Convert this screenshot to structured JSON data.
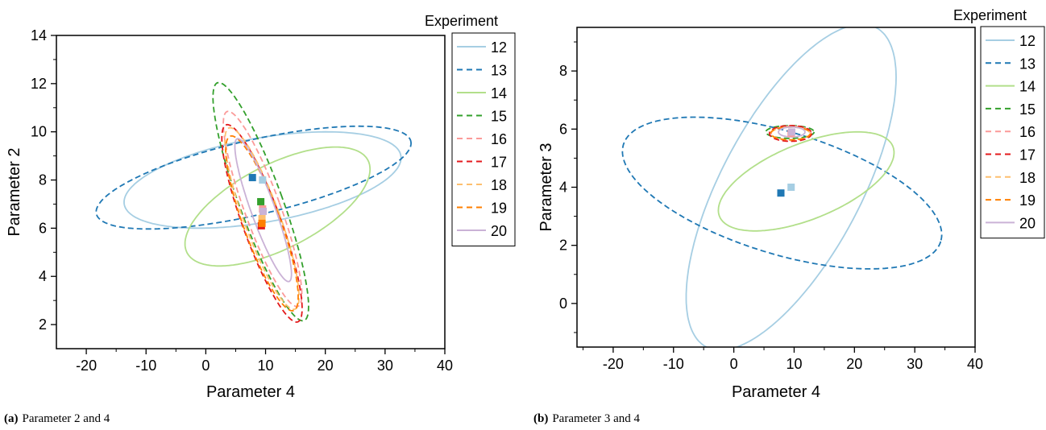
{
  "legend_colors": {
    "12": "#a6cee3",
    "13": "#1f78b4",
    "14": "#b2df8a",
    "15": "#33a02c",
    "16": "#fb9a99",
    "17": "#e31a1c",
    "18": "#fdbf6f",
    "19": "#ff7f00",
    "20": "#cab2d6"
  },
  "chart_data": [
    {
      "type": "scatter",
      "caption_label": "(a)",
      "caption_text": "Parameter 2 and 4",
      "xlabel": "Parameter 4",
      "ylabel": "Parameter 2",
      "xlim": [
        -25,
        40
      ],
      "ylim": [
        1,
        14
      ],
      "xticks": [
        -20,
        -10,
        0,
        10,
        20,
        30,
        40
      ],
      "yticks": [
        2,
        4,
        6,
        8,
        10,
        12,
        14
      ],
      "legend_title": "Experiment",
      "legend_placement": "right",
      "series": [
        {
          "name": "12",
          "style": "solid",
          "ellipse": {
            "center": [
              9.5,
              8.0
            ],
            "rx": 23.5,
            "ry": 1.75,
            "angle_deg": -10
          },
          "marker": [
            9.5,
            8.0
          ]
        },
        {
          "name": "13",
          "style": "dashed",
          "ellipse": {
            "center": [
              8.0,
              8.1
            ],
            "rx": 27.0,
            "ry": 1.55,
            "angle_deg": -13
          },
          "marker": [
            7.8,
            8.1
          ]
        },
        {
          "name": "14",
          "style": "solid",
          "ellipse": {
            "center": [
              12.0,
              6.9
            ],
            "rx": 17.0,
            "ry": 1.75,
            "angle_deg": -27
          },
          "marker": null
        },
        {
          "name": "15",
          "style": "dashed",
          "ellipse": {
            "center": [
              9.2,
              7.1
            ],
            "rx": 3.6,
            "ry": 5.25,
            "angle_deg": -20
          },
          "marker": [
            9.2,
            7.1
          ]
        },
        {
          "name": "16",
          "style": "dashed",
          "ellipse": {
            "center": [
              9.5,
              6.8
            ],
            "rx": 3.0,
            "ry": 4.3,
            "angle_deg": -20
          },
          "marker": [
            9.5,
            6.8
          ]
        },
        {
          "name": "17",
          "style": "dashed",
          "ellipse": {
            "center": [
              9.4,
              6.2
            ],
            "rx": 3.2,
            "ry": 4.35,
            "angle_deg": -20
          },
          "marker": [
            9.3,
            6.1
          ]
        },
        {
          "name": "18",
          "style": "dashed",
          "ellipse": {
            "center": [
              9.4,
              6.4
            ],
            "rx": 3.0,
            "ry": 4.0,
            "angle_deg": -20
          },
          "marker": [
            9.4,
            6.4
          ]
        },
        {
          "name": "19",
          "style": "dashed",
          "ellipse": {
            "center": [
              9.4,
              6.2
            ],
            "rx": 3.1,
            "ry": 3.85,
            "angle_deg": -20
          },
          "marker": [
            9.4,
            6.2
          ]
        },
        {
          "name": "20",
          "style": "solid",
          "ellipse": {
            "center": [
              9.6,
              6.75
            ],
            "rx": 2.0,
            "ry": 3.15,
            "angle_deg": -20
          },
          "marker": [
            9.6,
            6.7
          ]
        }
      ]
    },
    {
      "type": "scatter",
      "caption_label": "(b)",
      "caption_text": "Parameter 3 and 4",
      "xlabel": "Parameter 4",
      "ylabel": "Parameter 3",
      "xlim": [
        -26,
        40
      ],
      "ylim": [
        -1.5,
        9.5
      ],
      "xticks": [
        -20,
        -10,
        0,
        10,
        20,
        30,
        40
      ],
      "yticks": [
        0,
        2,
        4,
        6,
        8
      ],
      "legend_title": "Experiment",
      "legend_placement": "right",
      "series": [
        {
          "name": "12",
          "style": "solid",
          "ellipse": {
            "center": [
              9.5,
              4.0
            ],
            "rx": 30.0,
            "ry": 2.4,
            "angle_deg": -62
          },
          "marker": [
            9.5,
            4.0
          ]
        },
        {
          "name": "13",
          "style": "dashed",
          "ellipse": {
            "center": [
              8.0,
              3.8
            ],
            "rx": 27.5,
            "ry": 2.1,
            "angle_deg": 17
          },
          "marker": [
            7.8,
            3.8
          ]
        },
        {
          "name": "14",
          "style": "solid",
          "ellipse": {
            "center": [
              12.0,
              4.2
            ],
            "rx": 15.5,
            "ry": 1.3,
            "angle_deg": -22
          },
          "marker": null
        },
        {
          "name": "15",
          "style": "dashed",
          "ellipse": {
            "center": [
              9.3,
              5.9
            ],
            "rx": 4.0,
            "ry": 0.22,
            "angle_deg": 0
          },
          "marker": null
        },
        {
          "name": "16",
          "style": "dashed",
          "ellipse": {
            "center": [
              9.5,
              5.85
            ],
            "rx": 3.3,
            "ry": 0.25,
            "angle_deg": 0
          },
          "marker": [
            9.5,
            5.85
          ]
        },
        {
          "name": "17",
          "style": "dashed",
          "ellipse": {
            "center": [
              9.4,
              5.85
            ],
            "rx": 3.5,
            "ry": 0.27,
            "angle_deg": 0
          },
          "marker": null
        },
        {
          "name": "18",
          "style": "dashed",
          "ellipse": {
            "center": [
              9.4,
              5.85
            ],
            "rx": 3.2,
            "ry": 0.22,
            "angle_deg": 0
          },
          "marker": null
        },
        {
          "name": "19",
          "style": "dashed",
          "ellipse": {
            "center": [
              9.4,
              5.85
            ],
            "rx": 3.3,
            "ry": 0.22,
            "angle_deg": 0
          },
          "marker": null
        },
        {
          "name": "20",
          "style": "solid",
          "ellipse": {
            "center": [
              9.6,
              5.9
            ],
            "rx": 2.2,
            "ry": 0.17,
            "angle_deg": 0
          },
          "marker": [
            9.6,
            5.9
          ]
        }
      ]
    }
  ]
}
